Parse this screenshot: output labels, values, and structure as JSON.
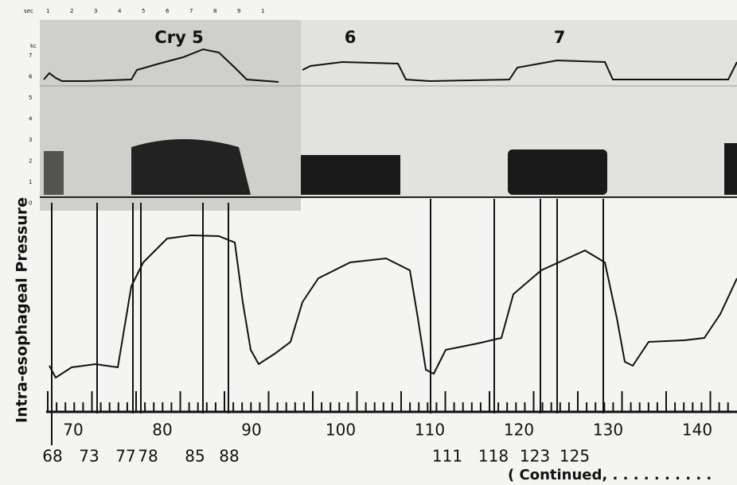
{
  "figure": {
    "spectrogram": {
      "time_unit": "sec",
      "time_ticks": [
        "1",
        "2",
        "3",
        "4",
        "5",
        "6",
        "7",
        "8",
        "9",
        "1"
      ],
      "freq_unit": "kc",
      "freq_ticks": [
        "7",
        "6",
        "5",
        "4",
        "3",
        "2",
        "1",
        "0"
      ],
      "cry_labels": [
        "Cry 5",
        "6",
        "7"
      ]
    },
    "y_axis_label": "Intra-esophageal Pressure",
    "axis_labels": [
      "70",
      "80",
      "90",
      "100",
      "110",
      "120",
      "130",
      "140"
    ],
    "marker_labels": [
      "68",
      "73",
      "77",
      "78",
      "85",
      "88",
      "111",
      "118",
      "123",
      "125"
    ],
    "footer": "( Continued, . . . . . . . . . ."
  }
}
